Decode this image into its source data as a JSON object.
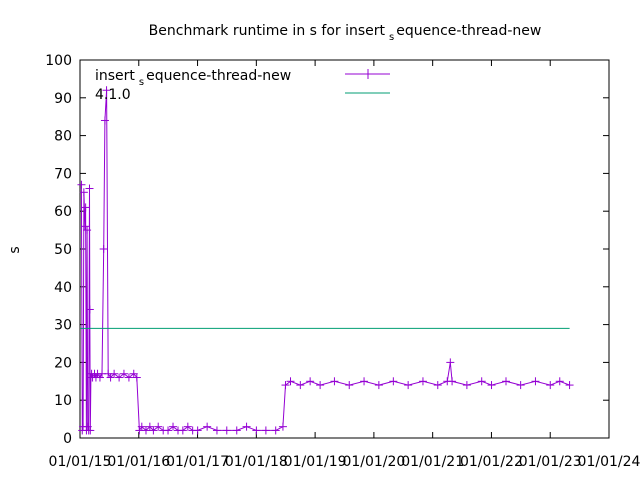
{
  "chart_data": {
    "type": "line",
    "title_main": "Benchmark runtime in s for insert",
    "title_sub": "s",
    "title_rest": "equence-thread-new",
    "ylabel": "s",
    "xlabel": "",
    "ylim": [
      0,
      100
    ],
    "xlim": [
      "2015-01-01",
      "2024-01-01"
    ],
    "y_ticks": [
      "0",
      "10",
      "20",
      "30",
      "40",
      "50",
      "60",
      "70",
      "80",
      "90",
      "100"
    ],
    "x_ticks": [
      "01/01/15",
      "01/01/16",
      "01/01/17",
      "01/01/18",
      "01/01/19",
      "01/01/20",
      "01/01/21",
      "01/01/22",
      "01/01/23",
      "01/01/24"
    ],
    "legend_position": "top-left",
    "grid": false,
    "colors": {
      "series": "#9400d3",
      "baseline": "#009e73"
    },
    "series": [
      {
        "name_main": "insert",
        "name_sub": "s",
        "name_rest": "equence-thread-new",
        "marker": "plus",
        "x": [
          "2015-01-10",
          "2015-01-15",
          "2015-01-20",
          "2015-01-25",
          "2015-02-01",
          "2015-02-05",
          "2015-02-10",
          "2015-02-14",
          "2015-02-18",
          "2015-02-24",
          "2015-03-01",
          "2015-03-03",
          "2015-03-06",
          "2015-03-10",
          "2015-03-14",
          "2015-03-20",
          "2015-04-01",
          "2015-04-10",
          "2015-04-20",
          "2015-05-05",
          "2015-05-18",
          "2015-05-28",
          "2015-06-05",
          "2015-06-15",
          "2015-06-25",
          "2015-07-10",
          "2015-08-01",
          "2015-09-01",
          "2015-10-01",
          "2015-11-01",
          "2015-12-01",
          "2015-12-20",
          "2016-01-05",
          "2016-01-20",
          "2016-02-15",
          "2016-03-10",
          "2016-04-01",
          "2016-05-01",
          "2016-06-01",
          "2016-07-01",
          "2016-08-01",
          "2016-09-01",
          "2016-10-01",
          "2016-11-01",
          "2016-12-01",
          "2017-01-01",
          "2017-03-01",
          "2017-05-01",
          "2017-07-01",
          "2017-09-01",
          "2017-11-01",
          "2018-01-01",
          "2018-03-01",
          "2018-05-01",
          "2018-06-15",
          "2018-07-01",
          "2018-08-01",
          "2018-10-01",
          "2018-12-01",
          "2019-02-01",
          "2019-05-01",
          "2019-08-01",
          "2019-11-01",
          "2020-02-01",
          "2020-05-01",
          "2020-08-01",
          "2020-11-01",
          "2021-02-01",
          "2021-04-01",
          "2021-04-20",
          "2021-05-01",
          "2021-08-01",
          "2021-11-01",
          "2022-01-01",
          "2022-04-01",
          "2022-07-01",
          "2022-10-01",
          "2023-01-01",
          "2023-03-01",
          "2023-05-01"
        ],
        "y": [
          67,
          2,
          3,
          65,
          56,
          61,
          2,
          55,
          3,
          2,
          66,
          34,
          2,
          16,
          17,
          16,
          17,
          16,
          17,
          16,
          17,
          50,
          84,
          92,
          17,
          16,
          17,
          16,
          17,
          16,
          17,
          16,
          2,
          3,
          2,
          3,
          2,
          3,
          2,
          2,
          3,
          2,
          2,
          3,
          2,
          2,
          3,
          2,
          2,
          2,
          3,
          2,
          2,
          2,
          3,
          14,
          15,
          14,
          15,
          14,
          15,
          14,
          15,
          14,
          15,
          14,
          15,
          14,
          15,
          20,
          15,
          14,
          15,
          14,
          15,
          14,
          15,
          14,
          15,
          14
        ]
      },
      {
        "name_main": "4.1.0",
        "name_sub": "",
        "name_rest": "",
        "marker": "none",
        "x": [
          "2015-01-01",
          "2023-05-01"
        ],
        "y": [
          29,
          29
        ]
      }
    ]
  }
}
